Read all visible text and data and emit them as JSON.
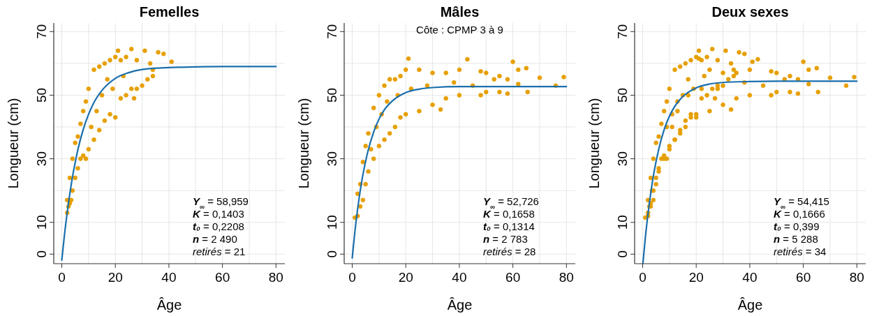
{
  "chart_data": [
    {
      "type": "scatter",
      "title": "Femelles",
      "xlabel": "Âge",
      "ylabel": "Longueur (cm)",
      "xlim": [
        -3,
        83.3
      ],
      "ylim": [
        -3,
        72.7
      ],
      "xticks": [
        0,
        {
          "value": 10,
          "label": null
        },
        20,
        {
          "value": 30,
          "label": null
        },
        40,
        {
          "value": 50,
          "label": null
        },
        60,
        {
          "value": 70,
          "label": null
        },
        80
      ],
      "yticks": [
        0,
        10,
        {
          "value": 20,
          "label": null
        },
        30,
        {
          "value": 40,
          "label": null
        },
        50,
        {
          "value": 60,
          "label": null
        },
        70
      ],
      "grid": true,
      "annotations": [
        "Y$_{∞}$ = 58,959",
        "K = 0,1403",
        "t₀ = 0,2208",
        "n = 2 490",
        "retirés = 21"
      ],
      "series": [
        {
          "type": "scatter",
          "marker": "circle",
          "color": "#e69f00",
          "x": [
            2,
            2,
            2.5,
            3,
            3,
            3.5,
            4,
            4,
            5,
            5,
            6,
            6,
            7,
            7,
            8,
            8,
            9,
            9,
            10,
            10,
            11,
            12,
            12,
            13,
            14,
            14,
            15,
            16,
            16,
            17,
            18,
            18,
            19,
            20,
            20,
            21,
            22,
            22,
            23,
            24,
            24,
            26,
            26,
            27,
            28,
            28,
            30,
            31,
            32,
            33,
            34,
            34,
            36,
            38,
            41
          ],
          "values": [
            13,
            17,
            15,
            16,
            24,
            17,
            20,
            30,
            24,
            35,
            27,
            37,
            30,
            41,
            31,
            45,
            30,
            48,
            33,
            52,
            40,
            36,
            58,
            45,
            39,
            59,
            50,
            42,
            60,
            55,
            44,
            61,
            52,
            43,
            62,
            64,
            49,
            61,
            56,
            50,
            62,
            52,
            64.5,
            49,
            52,
            61,
            53,
            64,
            55,
            60,
            56,
            58,
            63.5,
            63,
            60.5
          ]
        },
        {
          "type": "line",
          "color": "#1a6fad",
          "x": [
            0,
            1,
            2,
            3,
            4,
            5,
            6,
            8,
            10,
            12,
            15,
            20,
            25,
            30,
            40,
            50,
            60,
            80
          ],
          "values": [
            -1.9,
            6.1,
            13,
            19,
            24.3,
            28.8,
            32.8,
            39.2,
            44,
            47.7,
            51.5,
            55.3,
            57.1,
            58.1,
            58.7,
            58.9,
            59,
            59
          ]
        }
      ]
    },
    {
      "type": "scatter",
      "title": "Mâles",
      "subtitle": "Côte : CPMP 3 à 9",
      "xlabel": "Âge",
      "ylabel": "Longueur (cm)",
      "xlim": [
        -3,
        83.3
      ],
      "ylim": [
        -3,
        72.7
      ],
      "xticks": [
        0,
        {
          "value": 10,
          "label": null
        },
        20,
        {
          "value": 30,
          "label": null
        },
        40,
        {
          "value": 50,
          "label": null
        },
        60,
        {
          "value": 70,
          "label": null
        },
        80
      ],
      "yticks": [
        0,
        10,
        {
          "value": 20,
          "label": null
        },
        30,
        {
          "value": 40,
          "label": null
        },
        50,
        {
          "value": 60,
          "label": null
        },
        70
      ],
      "grid": true,
      "annotations": [
        "Y$_{∞}$ = 52,726",
        "K = 0,1658",
        "t₀ = 0,1314",
        "n = 2 783",
        "retirés = 28"
      ],
      "series": [
        {
          "type": "scatter",
          "marker": "circle",
          "color": "#e69f00",
          "x": [
            1,
            2,
            2,
            3,
            3,
            4,
            4,
            5,
            5,
            6,
            6,
            7,
            8,
            8,
            9,
            10,
            10,
            11,
            12,
            12,
            13,
            14,
            14,
            16,
            16,
            17,
            18,
            18,
            20,
            20,
            21,
            22,
            25,
            25,
            28,
            30,
            30,
            33,
            35,
            35,
            38,
            40,
            40,
            43,
            45,
            48,
            48,
            50,
            50,
            53,
            55,
            55,
            58,
            58,
            60,
            62,
            62,
            65,
            65.5,
            70,
            76,
            79
          ],
          "values": [
            11.5,
            12,
            19,
            15,
            22,
            17,
            29,
            22,
            34,
            26,
            38,
            33,
            30,
            46,
            40,
            34,
            50,
            44,
            36,
            53,
            48,
            38,
            55,
            40,
            55,
            50,
            43,
            56,
            44,
            58,
            61.5,
            52,
            45,
            58,
            53,
            47,
            57,
            45.5,
            49,
            57,
            54,
            50,
            58,
            61.3,
            53,
            50,
            57.5,
            51,
            57,
            55,
            51,
            56,
            50.5,
            55,
            60.5,
            53.5,
            58,
            58.5,
            51,
            55.5,
            53,
            55.7
          ]
        },
        {
          "type": "line",
          "color": "#1a6fad",
          "x": [
            0,
            1,
            2,
            3,
            4,
            5,
            6,
            8,
            10,
            12,
            15,
            20,
            25,
            30,
            40,
            50,
            60,
            80
          ],
          "values": [
            -1.2,
            7.1,
            14.1,
            20,
            25,
            29.2,
            32.8,
            38.4,
            42.5,
            45.4,
            48.2,
            50.8,
            51.9,
            52.4,
            52.7,
            52.7,
            52.7,
            52.7
          ]
        }
      ]
    },
    {
      "type": "scatter",
      "title": "Deux sexes",
      "xlabel": "Âge",
      "ylabel": "Longueur (cm)",
      "xlim": [
        -3,
        83.3
      ],
      "ylim": [
        -3,
        72.7
      ],
      "xticks": [
        0,
        {
          "value": 10,
          "label": null
        },
        20,
        {
          "value": 30,
          "label": null
        },
        40,
        {
          "value": 50,
          "label": null
        },
        60,
        {
          "value": 70,
          "label": null
        },
        80
      ],
      "yticks": [
        0,
        10,
        {
          "value": 20,
          "label": null
        },
        30,
        {
          "value": 40,
          "label": null
        },
        50,
        {
          "value": 60,
          "label": null
        },
        70
      ],
      "grid": true,
      "annotations": [
        "Y$_{∞}$ = 54,415",
        "K = 0,1666",
        "t₀ = 0,399",
        "n = 5 288",
        "retirés = 34"
      ],
      "series": [
        {
          "type": "scatter",
          "marker": "circle",
          "color": "#e69f00",
          "x": [
            2,
            2,
            2.5,
            3,
            3,
            3.5,
            4,
            4,
            5,
            5,
            6,
            6,
            7,
            7,
            8,
            8,
            9,
            9,
            10,
            10,
            11,
            12,
            12,
            13,
            14,
            14,
            15,
            16,
            16,
            17,
            18,
            18,
            19,
            20,
            20,
            21,
            22,
            22,
            23,
            24,
            24,
            26,
            26,
            27,
            28,
            28,
            30,
            31,
            32,
            33,
            34,
            34,
            36,
            38,
            41,
            1,
            2,
            3,
            4,
            5,
            6,
            8,
            9,
            10,
            11,
            12,
            13,
            14,
            16,
            17,
            18,
            20,
            21,
            22,
            25,
            25,
            28,
            30,
            30,
            33,
            35,
            35,
            38,
            40,
            40,
            43,
            45,
            48,
            48,
            50,
            50,
            53,
            55,
            55,
            58,
            58,
            60,
            62,
            62,
            65,
            65.5,
            70,
            76,
            79
          ],
          "values": [
            13,
            17,
            15,
            16,
            24,
            20,
            20,
            30,
            24,
            35,
            27,
            37,
            30,
            41,
            31,
            45,
            30,
            48,
            33,
            52,
            40,
            36,
            58,
            45,
            39,
            59,
            50,
            42,
            60,
            55,
            44,
            61,
            52,
            43,
            62,
            64,
            49,
            61,
            56,
            50,
            62,
            52,
            64.5,
            49,
            52,
            61,
            53,
            64,
            55,
            60,
            56,
            58,
            63.5,
            63,
            60.5,
            11.5,
            12,
            15,
            17,
            22,
            26,
            30,
            40,
            34,
            44,
            36,
            48,
            38,
            40,
            50,
            43,
            44,
            61.5,
            52,
            45,
            58,
            53,
            47,
            57,
            45.5,
            49,
            57,
            54,
            50,
            58,
            61.3,
            53,
            50,
            57.5,
            51,
            57,
            55,
            51,
            56,
            50.5,
            55,
            60.5,
            53.5,
            58,
            58.5,
            51,
            55.5,
            53,
            55.7
          ]
        },
        {
          "type": "line",
          "color": "#1a6fad",
          "x": [
            0.1,
            1,
            2,
            3,
            4,
            5,
            6,
            8,
            10,
            12,
            15,
            20,
            25,
            30,
            40,
            50,
            60,
            80
          ],
          "values": [
            -2.8,
            5.2,
            12.7,
            19.1,
            24.6,
            29.1,
            33,
            39.1,
            43.4,
            46.5,
            49.6,
            52.3,
            53.5,
            54,
            54.3,
            54.4,
            54.4,
            54.4
          ]
        }
      ]
    }
  ]
}
